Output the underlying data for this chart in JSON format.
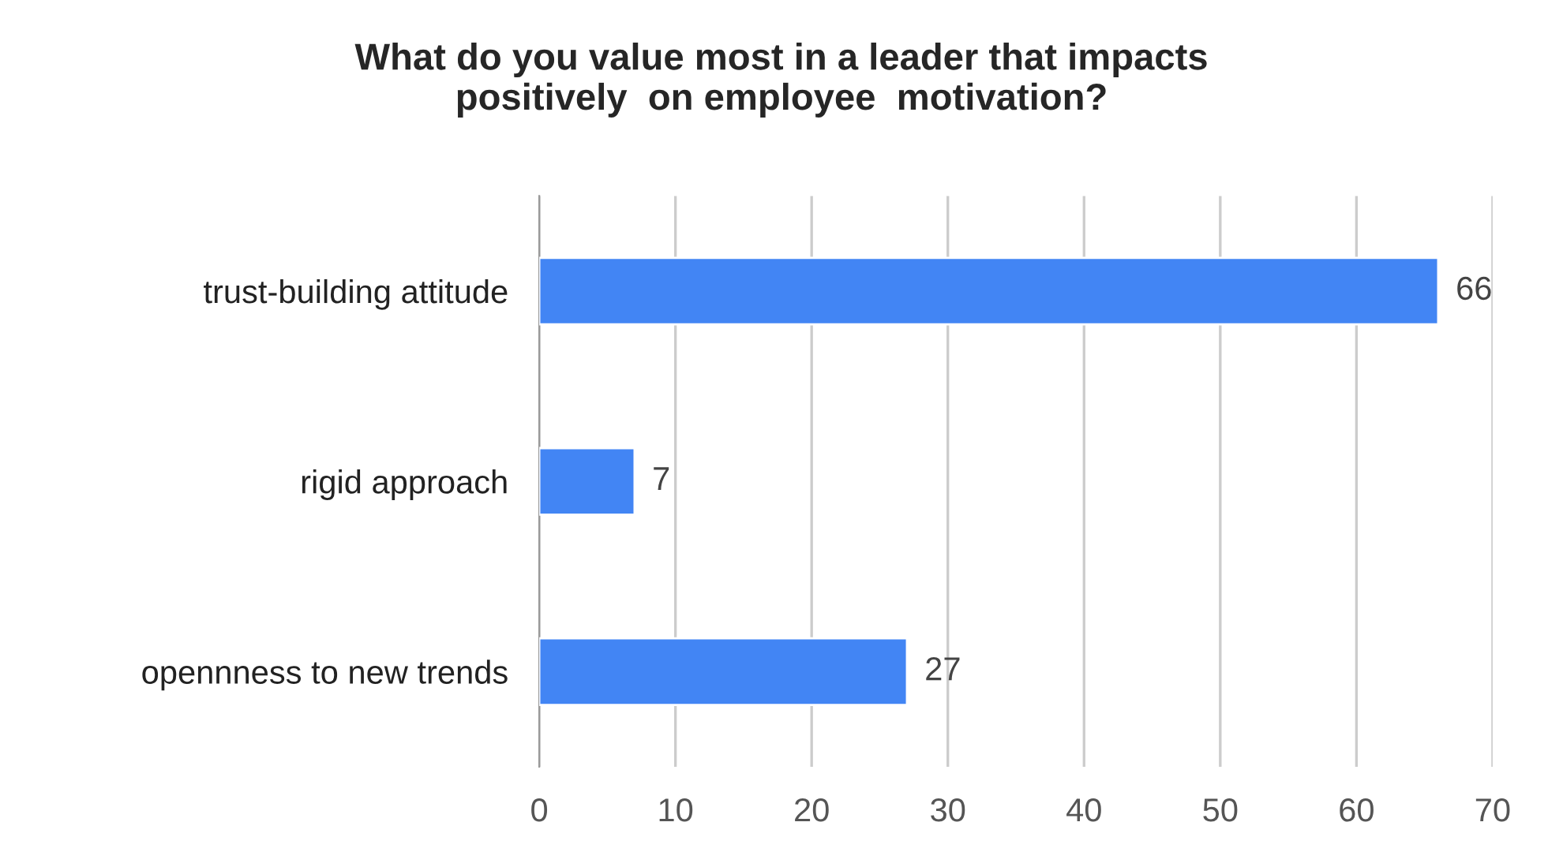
{
  "chart_data": {
    "type": "bar",
    "orientation": "horizontal",
    "title": "What do you value most in a leader that impacts\npositively  on employee  motivation?",
    "categories": [
      "trust-building attitude",
      "rigid approach",
      "opennness to new trends"
    ],
    "values": [
      66,
      7,
      27
    ],
    "color": "#4285f4",
    "xlim": [
      0,
      70
    ],
    "xticks": [
      0,
      10,
      20,
      30,
      40,
      50,
      60,
      70
    ],
    "grid": "x",
    "data_labels": true
  }
}
